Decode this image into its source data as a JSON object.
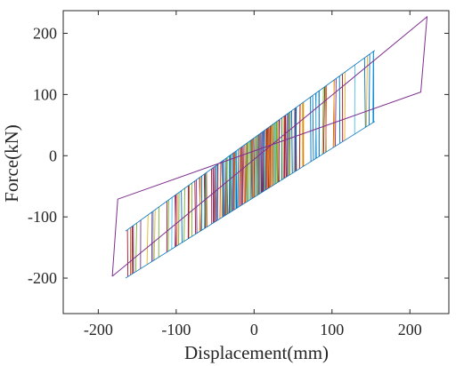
{
  "chart_data": {
    "type": "line",
    "title": "",
    "xlabel": "Displacement(mm)",
    "ylabel": "Force(kN)",
    "xlim": [
      -245,
      250
    ],
    "ylim": [
      -258,
      237
    ],
    "xticks": [
      -200,
      -100,
      0,
      100,
      200
    ],
    "yticks": [
      -200,
      -100,
      0,
      100,
      200
    ],
    "xtick_labels": [
      "-200",
      "-100",
      "0",
      "100",
      "200"
    ],
    "ytick_labels": [
      "-200",
      "-100",
      "0",
      "100",
      "200"
    ],
    "grid": false,
    "legend": false,
    "box": true,
    "description_free": true,
    "envelope": {
      "color": "#7E2F8E",
      "x": [
        -182,
        222,
        214,
        -175,
        -182
      ],
      "y": [
        -197,
        227,
        104,
        -71,
        -197
      ]
    },
    "palette": [
      "#0072BD",
      "#D95319",
      "#EDB120",
      "#7E2F8E",
      "#77AC30",
      "#4DBEEE",
      "#A2142F"
    ],
    "loops": {
      "count": 210,
      "x_min": -165,
      "x_max": 155,
      "center_density": 0.55,
      "upper_line": {
        "slope": 0.923,
        "intercept": 29
      },
      "lower_line": {
        "slope": 0.8,
        "intercept": -68
      }
    }
  }
}
